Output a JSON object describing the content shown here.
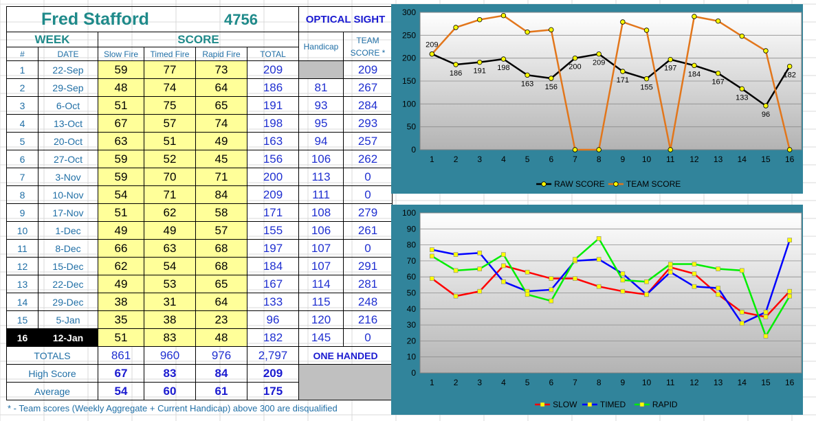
{
  "sheet": {
    "shooter_name": "Fred Stafford",
    "shooter_id": "4756",
    "class_label": "OPTICAL SIGHT",
    "week_header": "WEEK",
    "score_header": "SCORE",
    "handicap_header": "Handicap",
    "team_header_line1": "TEAM",
    "team_header_line2": "SCORE *",
    "col_num": "#",
    "col_date": "DATE",
    "col_slow": "Slow Fire",
    "col_timed": "Timed Fire",
    "col_rapid": "Rapid Fire",
    "col_total": "TOTAL",
    "rows": [
      {
        "week": "1",
        "date": "22-Sep",
        "slow": "59",
        "timed": "77",
        "rapid": "73",
        "total": "209",
        "handicap": "",
        "team": "209"
      },
      {
        "week": "2",
        "date": "29-Sep",
        "slow": "48",
        "timed": "74",
        "rapid": "64",
        "total": "186",
        "handicap": "81",
        "team": "267"
      },
      {
        "week": "3",
        "date": "6-Oct",
        "slow": "51",
        "timed": "75",
        "rapid": "65",
        "total": "191",
        "handicap": "93",
        "team": "284"
      },
      {
        "week": "4",
        "date": "13-Oct",
        "slow": "67",
        "timed": "57",
        "rapid": "74",
        "total": "198",
        "handicap": "95",
        "team": "293"
      },
      {
        "week": "5",
        "date": "20-Oct",
        "slow": "63",
        "timed": "51",
        "rapid": "49",
        "total": "163",
        "handicap": "94",
        "team": "257"
      },
      {
        "week": "6",
        "date": "27-Oct",
        "slow": "59",
        "timed": "52",
        "rapid": "45",
        "total": "156",
        "handicap": "106",
        "team": "262"
      },
      {
        "week": "7",
        "date": "3-Nov",
        "slow": "59",
        "timed": "70",
        "rapid": "71",
        "total": "200",
        "handicap": "113",
        "team": "0"
      },
      {
        "week": "8",
        "date": "10-Nov",
        "slow": "54",
        "timed": "71",
        "rapid": "84",
        "total": "209",
        "handicap": "111",
        "team": "0"
      },
      {
        "week": "9",
        "date": "17-Nov",
        "slow": "51",
        "timed": "62",
        "rapid": "58",
        "total": "171",
        "handicap": "108",
        "team": "279"
      },
      {
        "week": "10",
        "date": "1-Dec",
        "slow": "49",
        "timed": "49",
        "rapid": "57",
        "total": "155",
        "handicap": "106",
        "team": "261"
      },
      {
        "week": "11",
        "date": "8-Dec",
        "slow": "66",
        "timed": "63",
        "rapid": "68",
        "total": "197",
        "handicap": "107",
        "team": "0"
      },
      {
        "week": "12",
        "date": "15-Dec",
        "slow": "62",
        "timed": "54",
        "rapid": "68",
        "total": "184",
        "handicap": "107",
        "team": "291"
      },
      {
        "week": "13",
        "date": "22-Dec",
        "slow": "49",
        "timed": "53",
        "rapid": "65",
        "total": "167",
        "handicap": "114",
        "team": "281"
      },
      {
        "week": "14",
        "date": "29-Dec",
        "slow": "38",
        "timed": "31",
        "rapid": "64",
        "total": "133",
        "handicap": "115",
        "team": "248"
      },
      {
        "week": "15",
        "date": "5-Jan",
        "slow": "35",
        "timed": "38",
        "rapid": "23",
        "total": "96",
        "handicap": "120",
        "team": "216"
      },
      {
        "week": "16",
        "date": "12-Jan",
        "slow": "51",
        "timed": "83",
        "rapid": "48",
        "total": "182",
        "handicap": "145",
        "team": "0"
      }
    ],
    "totals_label": "TOTALS",
    "totals": {
      "slow": "861",
      "timed": "960",
      "rapid": "976",
      "total": "2,797"
    },
    "one_handed_label": "ONE HANDED",
    "high_label": "High Score",
    "high": {
      "slow": "67",
      "timed": "83",
      "rapid": "84",
      "total": "209"
    },
    "avg_label": "Average",
    "avg": {
      "slow": "54",
      "timed": "60",
      "rapid": "61",
      "total": "175"
    },
    "footnote": "* - Team scores (Weekly Aggregate + Current Handicap) above 300 are disqualified"
  },
  "chart_data": [
    {
      "type": "line",
      "x": [
        1,
        2,
        3,
        4,
        5,
        6,
        7,
        8,
        9,
        10,
        11,
        12,
        13,
        14,
        15,
        16
      ],
      "ylim": [
        0,
        300
      ],
      "yticks": [
        0,
        50,
        100,
        150,
        200,
        250,
        300
      ],
      "grid": true,
      "legend": "bottom",
      "series": [
        {
          "name": "RAW SCORE",
          "color": "#000000",
          "marker": "#ffff00",
          "labels": true,
          "values": [
            209,
            186,
            191,
            198,
            163,
            156,
            200,
            209,
            171,
            155,
            197,
            184,
            167,
            133,
            96,
            182
          ]
        },
        {
          "name": "TEAM SCORE",
          "color": "#e2761b",
          "marker": "#ffff00",
          "labels": false,
          "values": [
            209,
            267,
            284,
            293,
            257,
            262,
            0,
            0,
            279,
            261,
            0,
            291,
            281,
            248,
            216,
            0
          ]
        }
      ]
    },
    {
      "type": "line",
      "x": [
        1,
        2,
        3,
        4,
        5,
        6,
        7,
        8,
        9,
        10,
        11,
        12,
        13,
        14,
        15,
        16
      ],
      "ylim": [
        0,
        100
      ],
      "yticks": [
        0,
        10,
        20,
        30,
        40,
        50,
        60,
        70,
        80,
        90,
        100
      ],
      "grid": true,
      "legend": "bottom",
      "series": [
        {
          "name": "SLOW",
          "color": "#ff0000",
          "marker": "#ffff00",
          "labels": false,
          "values": [
            59,
            48,
            51,
            67,
            63,
            59,
            59,
            54,
            51,
            49,
            66,
            62,
            49,
            38,
            35,
            51
          ]
        },
        {
          "name": "TIMED",
          "color": "#0000ff",
          "marker": "#ffff00",
          "labels": false,
          "values": [
            77,
            74,
            75,
            57,
            51,
            52,
            70,
            71,
            62,
            49,
            63,
            54,
            53,
            31,
            38,
            83
          ]
        },
        {
          "name": "RAPID",
          "color": "#00ee00",
          "marker": "#ffff00",
          "labels": false,
          "values": [
            73,
            64,
            65,
            74,
            49,
            45,
            71,
            84,
            58,
            57,
            68,
            68,
            65,
            64,
            23,
            48
          ]
        }
      ]
    }
  ]
}
